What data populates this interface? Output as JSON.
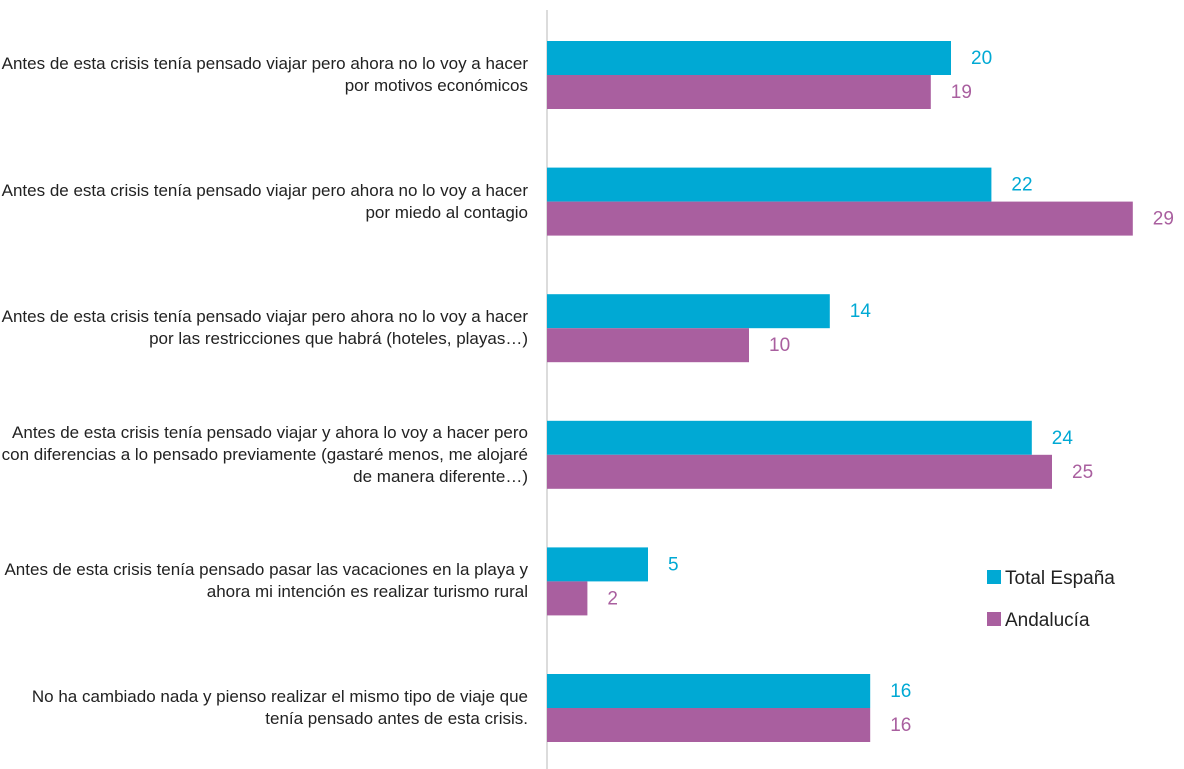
{
  "chart_data": {
    "type": "bar",
    "orientation": "horizontal",
    "categories": [
      "Antes de esta crisis tenía pensado viajar pero ahora no lo voy a hacer por motivos económicos",
      "Antes de esta crisis tenía pensado viajar pero ahora no lo voy a hacer por miedo al contagio",
      "Antes de esta crisis tenía pensado viajar pero ahora no lo voy a hacer por las restricciones que habrá (hoteles, playas…)",
      "Antes de esta crisis tenía pensado viajar y ahora lo voy a hacer pero con diferencias a lo pensado previamente (gastaré menos, me alojaré de manera diferente…)",
      "Antes de esta crisis tenía pensado pasar las vacaciones en la playa y ahora mi intención es realizar turismo rural",
      "No ha cambiado nada y pienso realizar el mismo tipo de viaje que tenía pensado antes de esta crisis."
    ],
    "series": [
      {
        "name": "Total España",
        "color": "#00a9d4",
        "values": [
          20,
          22,
          14,
          24,
          5,
          16
        ]
      },
      {
        "name": "Andalucía",
        "color": "#a95f9f",
        "values": [
          19,
          29,
          10,
          25,
          2,
          16
        ]
      }
    ],
    "xlim": [
      0,
      30
    ],
    "legend": "right",
    "grid": false
  }
}
